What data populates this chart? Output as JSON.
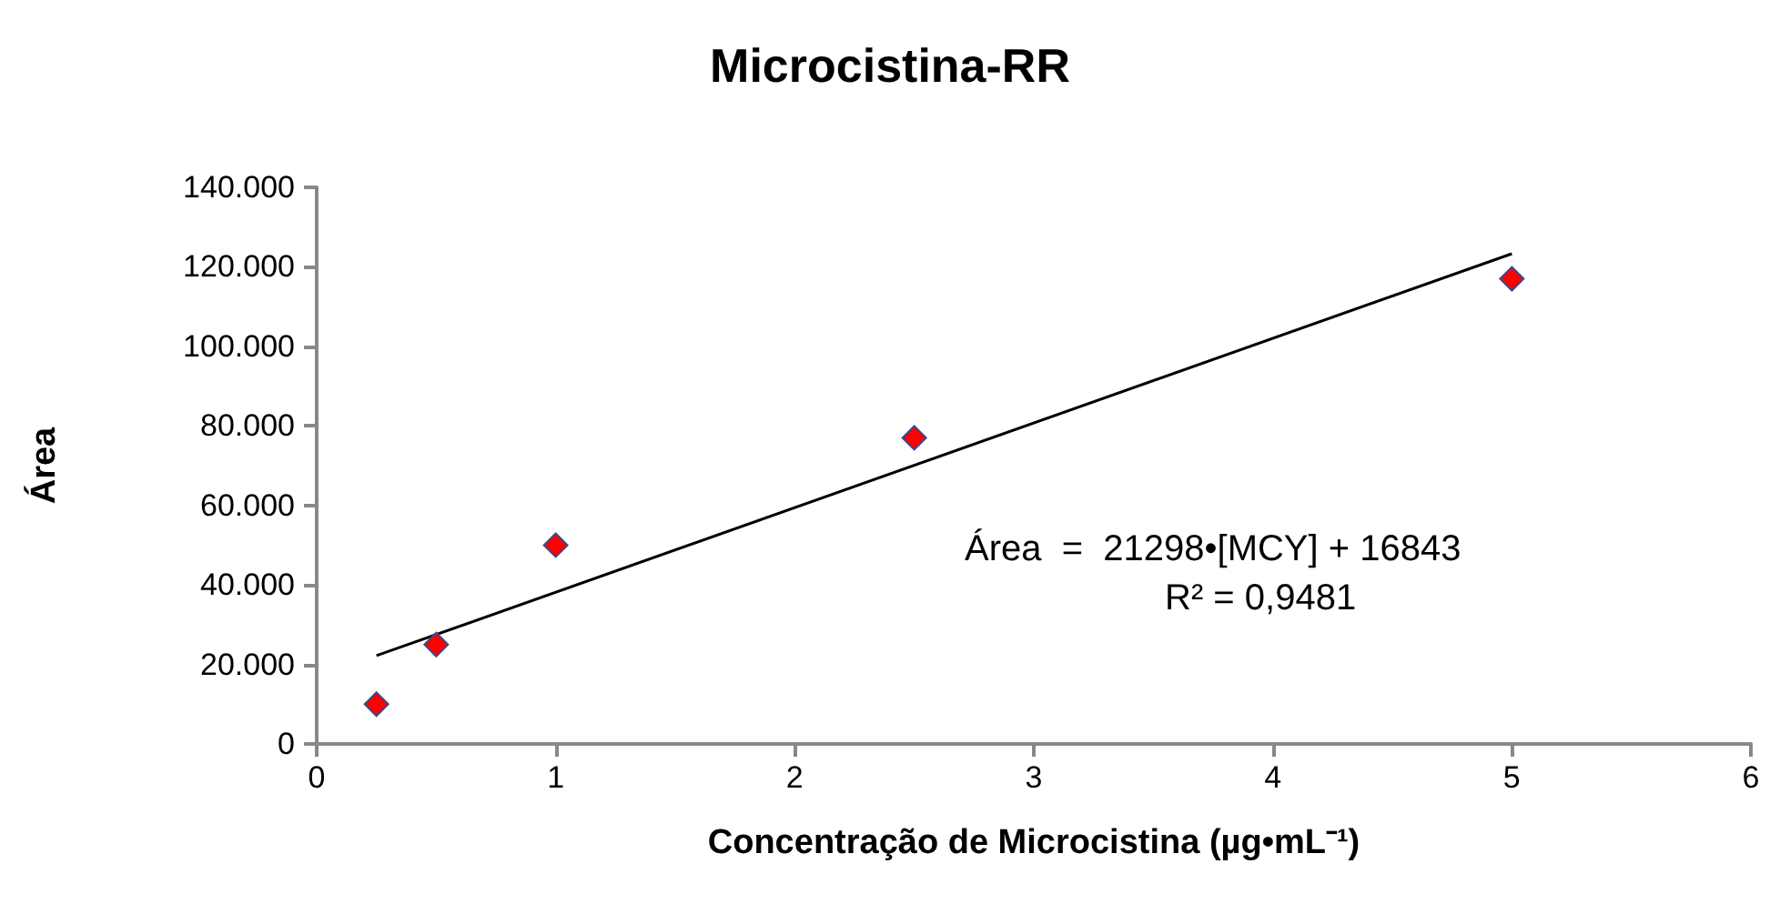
{
  "chart_data": {
    "type": "scatter",
    "title": "Microcistina-RR",
    "xlabel": "Concentração de Microcistina (µg•mL⁻¹)",
    "ylabel": "Área",
    "x": [
      0.25,
      0.5,
      1,
      2.5,
      5
    ],
    "series": [
      {
        "type": "scatter",
        "color": "#ff0000",
        "values": [
          10000,
          25000,
          50000,
          77000,
          117000
        ]
      },
      {
        "type": "line",
        "color": "#000000",
        "x": [
          0.25,
          5
        ],
        "values": [
          22200,
          123300
        ],
        "marker": "none"
      }
    ],
    "marker": "diamond",
    "xlim": [
      0,
      6
    ],
    "xticks": [
      0,
      1,
      2,
      3,
      4,
      5,
      6
    ],
    "ylim": [
      0,
      140000
    ],
    "yticks": [
      {
        "value": 0,
        "label": "0"
      },
      {
        "value": 20000,
        "label": "20.000"
      },
      {
        "value": 40000,
        "label": "40.000"
      },
      {
        "value": 60000,
        "label": "60.000"
      },
      {
        "value": 80000,
        "label": "80.000"
      },
      {
        "value": 100000,
        "label": "100.000"
      },
      {
        "value": 120000,
        "label": "120.000"
      },
      {
        "value": 140000,
        "label": "140.000"
      }
    ],
    "annotations": [
      "Área  =  21298•[MCY] + 16843",
      "R² = 0,9481"
    ]
  }
}
